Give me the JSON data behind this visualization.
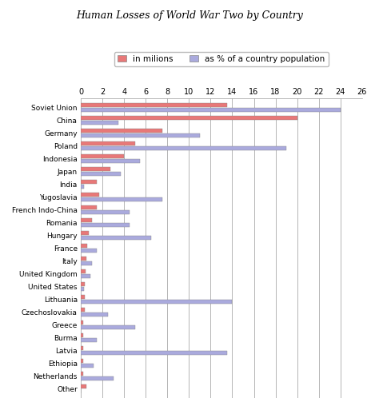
{
  "title": "Human Losses of World War Two by Country",
  "legend_labels": [
    "in milions",
    "as % of a country population"
  ],
  "bar_colors": [
    "#E87878",
    "#AAAADD"
  ],
  "countries": [
    "Soviet Union",
    "China",
    "Germany",
    "Poland",
    "Indonesia",
    "Japan",
    "India",
    "Yugoslavia",
    "French Indo-China",
    "Romania",
    "Hungary",
    "France",
    "Italy",
    "United Kingdom",
    "United States",
    "Lithuania",
    "Czechoslovakia",
    "Greece",
    "Burma",
    "Latvia",
    "Ethiopia",
    "Netherlands",
    "Other"
  ],
  "millions": [
    13.5,
    20.0,
    7.5,
    5.0,
    4.0,
    2.7,
    1.5,
    1.7,
    1.5,
    1.0,
    0.75,
    0.6,
    0.5,
    0.45,
    0.4,
    0.35,
    0.35,
    0.2,
    0.25,
    0.2,
    0.2,
    0.21,
    0.5
  ],
  "pct_population": [
    24.0,
    3.5,
    11.0,
    19.0,
    5.5,
    3.7,
    0.3,
    7.5,
    4.5,
    4.5,
    6.5,
    1.5,
    1.0,
    0.9,
    0.32,
    14.0,
    2.5,
    5.0,
    1.5,
    13.5,
    1.2,
    3.0,
    0.0
  ],
  "xlim": [
    0,
    26
  ],
  "xticks": [
    0,
    2,
    4,
    6,
    8,
    10,
    12,
    14,
    16,
    18,
    20,
    22,
    24,
    26
  ],
  "bar_height": 0.3,
  "bg_color": "#FFFFFF",
  "grid_color": "#999999"
}
